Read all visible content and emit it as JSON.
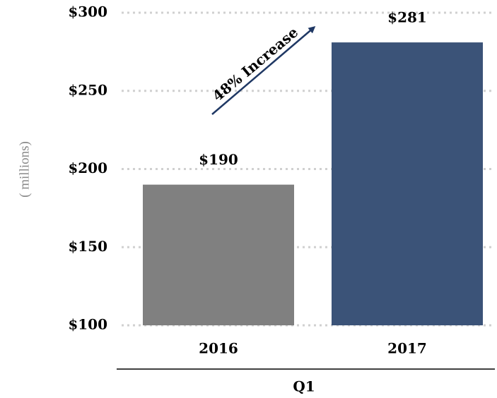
{
  "chart_data": {
    "type": "bar",
    "categories": [
      "2016",
      "2017"
    ],
    "values": [
      190,
      281
    ],
    "value_labels": [
      "$190",
      "$281"
    ],
    "colors": [
      "#808080",
      "#3b5378"
    ],
    "ylim": [
      100,
      300
    ],
    "yticks": [
      {
        "value": 100,
        "label": "$100"
      },
      {
        "value": 150,
        "label": "$150"
      },
      {
        "value": 200,
        "label": "$200"
      },
      {
        "value": 250,
        "label": "$250"
      },
      {
        "value": 300,
        "label": "$300"
      }
    ],
    "y_axis_label": "( millions)",
    "x_axis_label": "Q1",
    "annotation": "48% Increase",
    "grid": true
  }
}
